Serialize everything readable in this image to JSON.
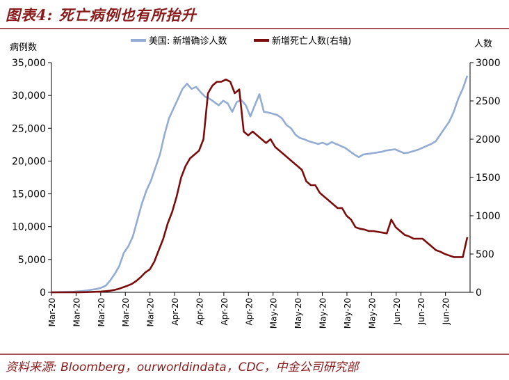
{
  "title": "图表4: 死亡病例也有所抬升",
  "source": "资料来源: Bloomberg，ourworldindata，CDC，中金公司研究部",
  "colors": {
    "accent": "#8b1a1a",
    "cases": "#93acd3",
    "deaths": "#7a0c0c"
  },
  "chart_data": {
    "type": "line",
    "title": "图表4: 死亡病例也有所抬升",
    "ylabel": "病例数",
    "y2label": "人数",
    "ylim": [
      0,
      35000
    ],
    "y2lim": [
      0,
      3000
    ],
    "yticks": [
      "0",
      "5,000",
      "10,000",
      "15,000",
      "20,000",
      "25,000",
      "30,000",
      "35,000"
    ],
    "y2ticks": [
      "0",
      "500",
      "1000",
      "1500",
      "2000",
      "2500",
      "3000"
    ],
    "xtick_labels": [
      "Mar-20",
      "Mar-20",
      "Mar-20",
      "Mar-20",
      "Mar-20",
      "Apr-20",
      "Apr-20",
      "Apr-20",
      "Apr-20",
      "May-20",
      "May-20",
      "May-20",
      "May-20",
      "May-20",
      "Jun-20",
      "Jun-20",
      "Jun-20"
    ],
    "legend_position": "top",
    "series": [
      {
        "name": "美国: 新增确诊人数",
        "axis": "left",
        "values": [
          0,
          20,
          40,
          60,
          80,
          100,
          150,
          200,
          300,
          400,
          500,
          700,
          1000,
          1800,
          2800,
          4000,
          6000,
          7000,
          8500,
          11000,
          13500,
          15500,
          17000,
          19000,
          21000,
          24000,
          26500,
          28000,
          29500,
          31000,
          31800,
          31000,
          31300,
          30500,
          29800,
          29500,
          29000,
          28500,
          29200,
          28800,
          27500,
          29000,
          29300,
          28500,
          26800,
          28500,
          30200,
          27500,
          27400,
          27200,
          27000,
          26500,
          25500,
          25000,
          24000,
          23500,
          23300,
          23000,
          22800,
          22600,
          22800,
          22500,
          22900,
          22600,
          22300,
          22000,
          21500,
          21000,
          20600,
          21000,
          21100,
          21200,
          21300,
          21400,
          21600,
          21700,
          21800,
          21500,
          21200,
          21300,
          21500,
          21700,
          22000,
          22300,
          22600,
          23000,
          24000,
          25000,
          26000,
          27500,
          29500,
          31000,
          33000
        ]
      },
      {
        "name": "新增死亡人数(右轴)",
        "axis": "right",
        "values": [
          0,
          0,
          0,
          0,
          0,
          1,
          1,
          2,
          3,
          5,
          7,
          10,
          15,
          20,
          30,
          45,
          65,
          85,
          110,
          150,
          200,
          260,
          300,
          400,
          550,
          700,
          900,
          1050,
          1250,
          1500,
          1650,
          1750,
          1800,
          1850,
          2000,
          2600,
          2700,
          2750,
          2750,
          2780,
          2750,
          2600,
          2650,
          2100,
          2050,
          2100,
          2050,
          2000,
          1950,
          2000,
          1900,
          1850,
          1800,
          1750,
          1700,
          1650,
          1600,
          1450,
          1400,
          1400,
          1300,
          1250,
          1200,
          1150,
          1100,
          1100,
          1000,
          950,
          850,
          830,
          820,
          800,
          800,
          790,
          780,
          770,
          950,
          850,
          800,
          750,
          730,
          700,
          700,
          700,
          650,
          600,
          550,
          530,
          500,
          480,
          460,
          460,
          460,
          720
        ]
      }
    ]
  }
}
